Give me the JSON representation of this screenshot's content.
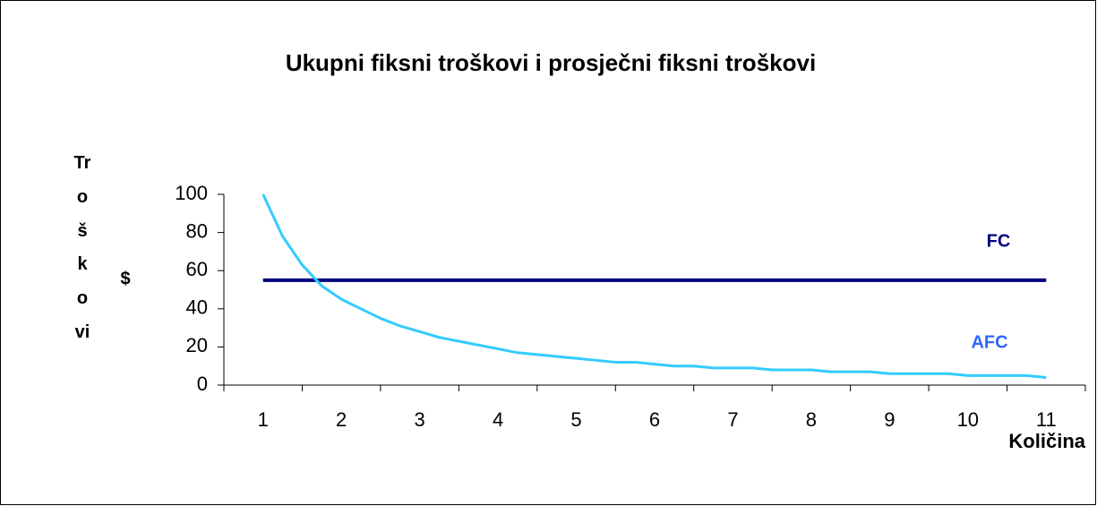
{
  "chart_data": {
    "type": "line",
    "title": "Ukupni fiksni troškovi i prosječni fiksni troškovi",
    "y_label": "Troškovi",
    "y_unit": "$",
    "x_label": "Količina",
    "annotations": [
      {
        "text": "FC",
        "color": "#000080"
      },
      {
        "text": "AFC",
        "color": "#3366ff"
      }
    ],
    "xlim": [
      0.5,
      11.5
    ],
    "xticks": [
      1,
      2,
      3,
      4,
      5,
      6,
      7,
      8,
      9,
      10,
      11
    ],
    "ylim": [
      0,
      100
    ],
    "yticks": [
      0,
      20,
      40,
      60,
      80,
      100
    ],
    "series": [
      {
        "name": "FC",
        "color": "#000080",
        "x": [
          1,
          11
        ],
        "values": [
          55,
          55
        ]
      },
      {
        "name": "AFC",
        "color": "#33ccff",
        "x": [
          1,
          1.25,
          1.5,
          1.75,
          2,
          2.25,
          2.5,
          2.75,
          3,
          3.25,
          3.5,
          3.75,
          4,
          4.25,
          4.5,
          4.75,
          5,
          5.25,
          5.5,
          5.75,
          6,
          6.25,
          6.5,
          6.75,
          7,
          7.25,
          7.5,
          7.75,
          8,
          8.25,
          8.5,
          8.75,
          9,
          9.25,
          9.5,
          9.75,
          10,
          10.25,
          10.5,
          10.75,
          11
        ],
        "values": [
          100,
          78,
          63,
          52,
          45,
          40,
          35,
          31,
          28,
          25,
          23,
          21,
          19,
          17,
          16,
          15,
          14,
          13,
          12,
          12,
          11,
          10,
          10,
          9,
          9,
          9,
          8,
          8,
          8,
          7,
          7,
          7,
          6,
          6,
          6,
          6,
          5,
          5,
          5,
          5,
          4
        ]
      }
    ]
  }
}
